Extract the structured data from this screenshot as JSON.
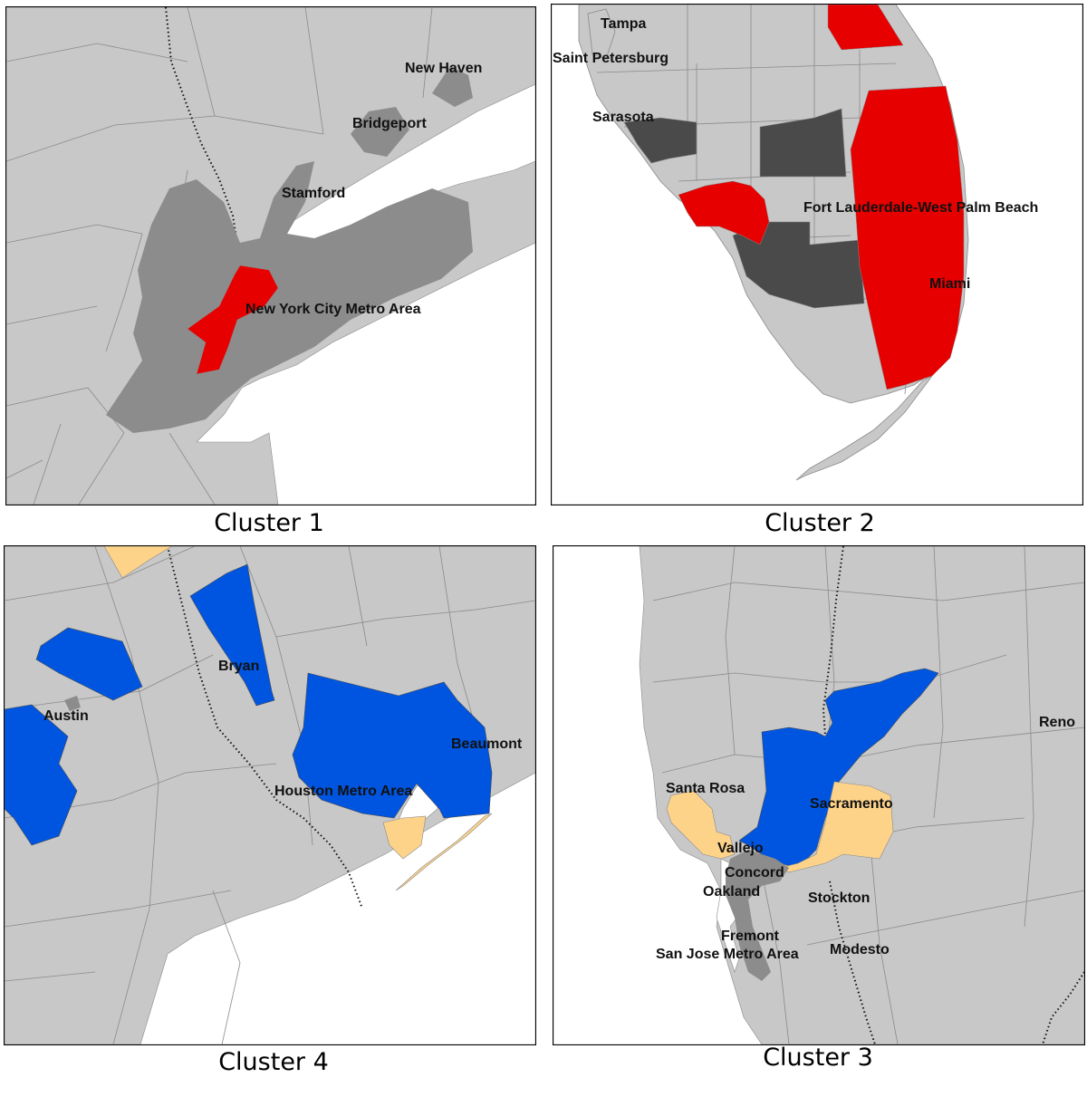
{
  "colors": {
    "land": "#c8c8c8",
    "water": "#ffffff",
    "border": "#8a8a8a",
    "urban": "#8c8c8c",
    "dark_county": "#4a4a4a",
    "red": "#e60000",
    "blue": "#0055e0",
    "tan": "#fdd38a"
  },
  "panels": [
    {
      "caption": "Cluster 1",
      "labels": [
        "New Haven",
        "Bridgeport",
        "Stamford",
        "New York City Metro Area"
      ]
    },
    {
      "caption": "Cluster 2",
      "labels": [
        "Tampa",
        "Saint Petersburg",
        "Sarasota",
        "Fort Lauderdale-West Palm Beach",
        "Miami"
      ]
    },
    {
      "caption": "Cluster 4",
      "labels": [
        "Bryan",
        "Austin",
        "Beaumont",
        "Houston Metro Area"
      ]
    },
    {
      "caption": "Cluster 3",
      "labels": [
        "Reno",
        "Santa Rosa",
        "Sacramento",
        "Vallejo",
        "Concord",
        "Oakland",
        "Stockton",
        "Fremont",
        "San Jose Metro Area",
        "Modesto"
      ]
    }
  ]
}
